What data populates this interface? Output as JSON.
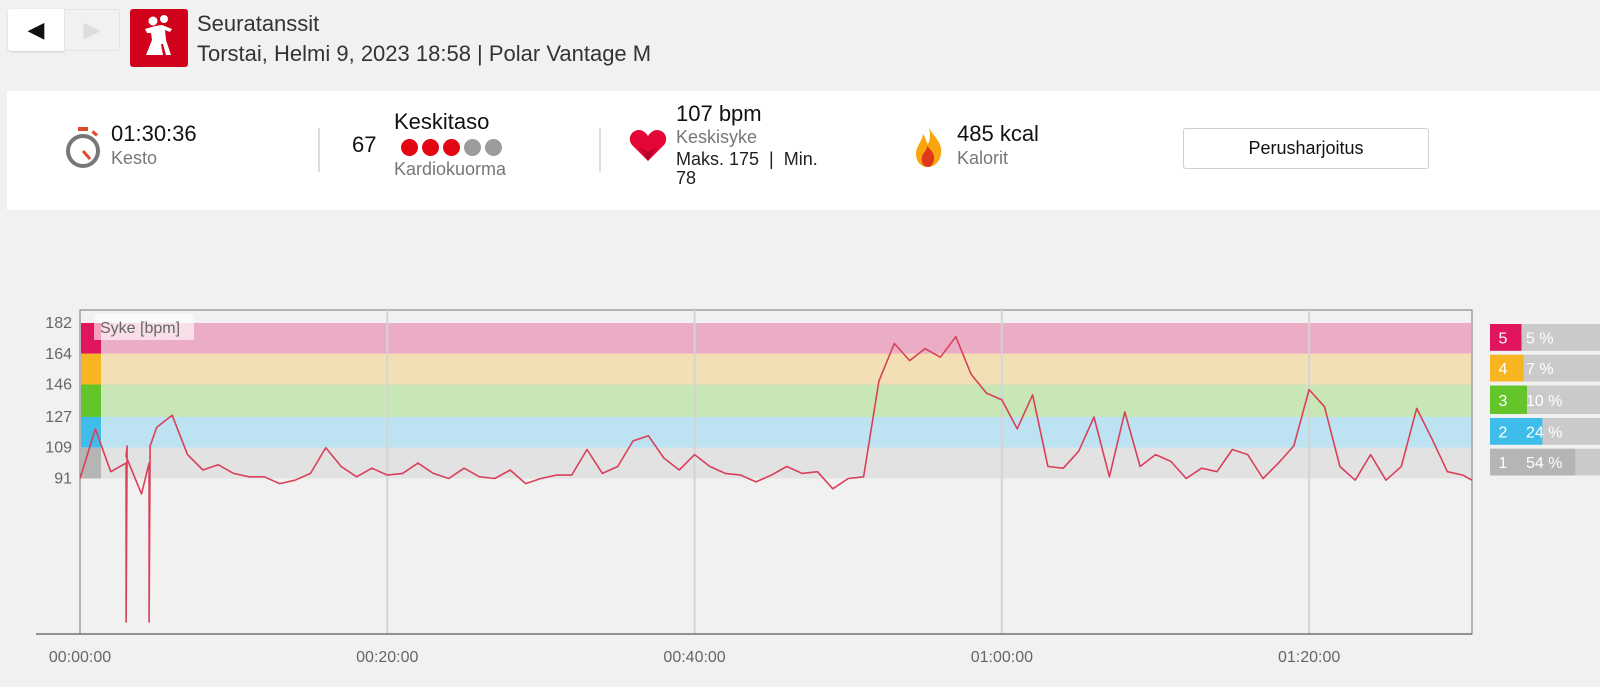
{
  "header": {
    "back_glyph": "◀",
    "forward_glyph": "▶",
    "sport_icon": "ballroom-dance-icon",
    "sport_icon_color": "#d0011b",
    "title": "Seuratanssit",
    "subtitle": "Torstai, Helmi 9, 2023 18:58 | Polar Vantage M"
  },
  "summary": {
    "duration": {
      "icon": "stopwatch-icon",
      "value": "01:30:36",
      "label": "Kesto"
    },
    "cardio_load": {
      "value": "67",
      "level": "Keskitaso",
      "dots_on": 3,
      "dots_total": 5,
      "label": "Kardiokuorma"
    },
    "heart_rate": {
      "icon": "heart-icon",
      "value": "107 bpm",
      "label": "Keskisyke",
      "maxmin": "Maks. 175  |  Min.",
      "min_value": "78"
    },
    "calories": {
      "icon": "flame-icon",
      "value": "485 kcal",
      "label": "Kalorit"
    },
    "training_benefit": "Perusharjoitus"
  },
  "chart_data": {
    "type": "line",
    "title": "Syke [bpm]",
    "series": [
      {
        "name": "Syke [bpm]",
        "color": "#d9405a",
        "x": [
          0,
          1,
          2,
          3,
          4,
          5,
          6,
          7,
          8,
          9,
          10,
          11,
          12,
          13,
          14,
          15,
          16,
          17,
          18,
          19,
          20,
          21,
          22,
          23,
          24,
          25,
          26,
          27,
          28,
          29,
          30,
          31,
          32,
          33,
          34,
          35,
          36,
          37,
          38,
          39,
          40,
          41,
          42,
          43,
          44,
          45,
          46,
          47,
          48,
          49,
          50,
          51,
          52,
          53,
          54,
          55,
          56,
          57,
          58,
          59,
          60,
          61,
          62,
          63,
          64,
          65,
          66,
          67,
          68,
          69,
          70,
          71,
          72,
          73,
          74,
          75,
          76,
          77,
          78,
          79,
          80,
          81,
          82,
          83,
          84,
          85,
          86,
          87,
          88,
          89,
          90,
          90.6
        ],
        "y": [
          91,
          120,
          95,
          104,
          82,
          121,
          128,
          105,
          96,
          99,
          94,
          92,
          92,
          88,
          90,
          94,
          109,
          98,
          92,
          97,
          93,
          94,
          100,
          94,
          91,
          97,
          92,
          91,
          96,
          88,
          91,
          93,
          93,
          108,
          94,
          98,
          113,
          116,
          103,
          96,
          105,
          98,
          94,
          93,
          89,
          93,
          98,
          94,
          95,
          85,
          91,
          92,
          148,
          170,
          160,
          167,
          162,
          174,
          152,
          141,
          137,
          120,
          140,
          98,
          97,
          107,
          127,
          92,
          130,
          98,
          105,
          101,
          91,
          97,
          95,
          108,
          105,
          91,
          100,
          110,
          143,
          133,
          98,
          90,
          105,
          90,
          98,
          132,
          114,
          95,
          93,
          90
        ],
        "dropouts": [
          {
            "x": 3,
            "y": 0
          },
          {
            "x": 4.5,
            "y": 0
          }
        ]
      }
    ],
    "x_ticks": [
      "00:00:00",
      "00:20:00",
      "00:40:00",
      "01:00:00",
      "01:20:00"
    ],
    "x_tick_values": [
      0,
      20,
      40,
      60,
      80
    ],
    "x_range": [
      0,
      90.6
    ],
    "y_ticks": [
      182,
      164,
      146,
      127,
      109,
      91
    ],
    "y_range": [
      0,
      182
    ],
    "zones": [
      {
        "zone": "5",
        "lower": 164,
        "upper": 182,
        "percent": "5 %",
        "fraction": 0.05,
        "color": "#e0155e",
        "band": "#ebadc5"
      },
      {
        "zone": "4",
        "lower": 146,
        "upper": 164,
        "percent": "7 %",
        "fraction": 0.07,
        "color": "#f7b621",
        "band": "#f3dfb4"
      },
      {
        "zone": "3",
        "lower": 127,
        "upper": 146,
        "percent": "10 %",
        "fraction": 0.1,
        "color": "#63c52a",
        "band": "#c8e6b6"
      },
      {
        "zone": "2",
        "lower": 109,
        "upper": 127,
        "percent": "24 %",
        "fraction": 0.24,
        "color": "#3ebdea",
        "band": "#bde2f1"
      },
      {
        "zone": "1",
        "lower": 91,
        "upper": 109,
        "percent": "54 %",
        "fraction": 0.54,
        "color": "#b5b5b5",
        "band": "#e2e2e2"
      }
    ],
    "grid": true,
    "legend": "top-left"
  }
}
